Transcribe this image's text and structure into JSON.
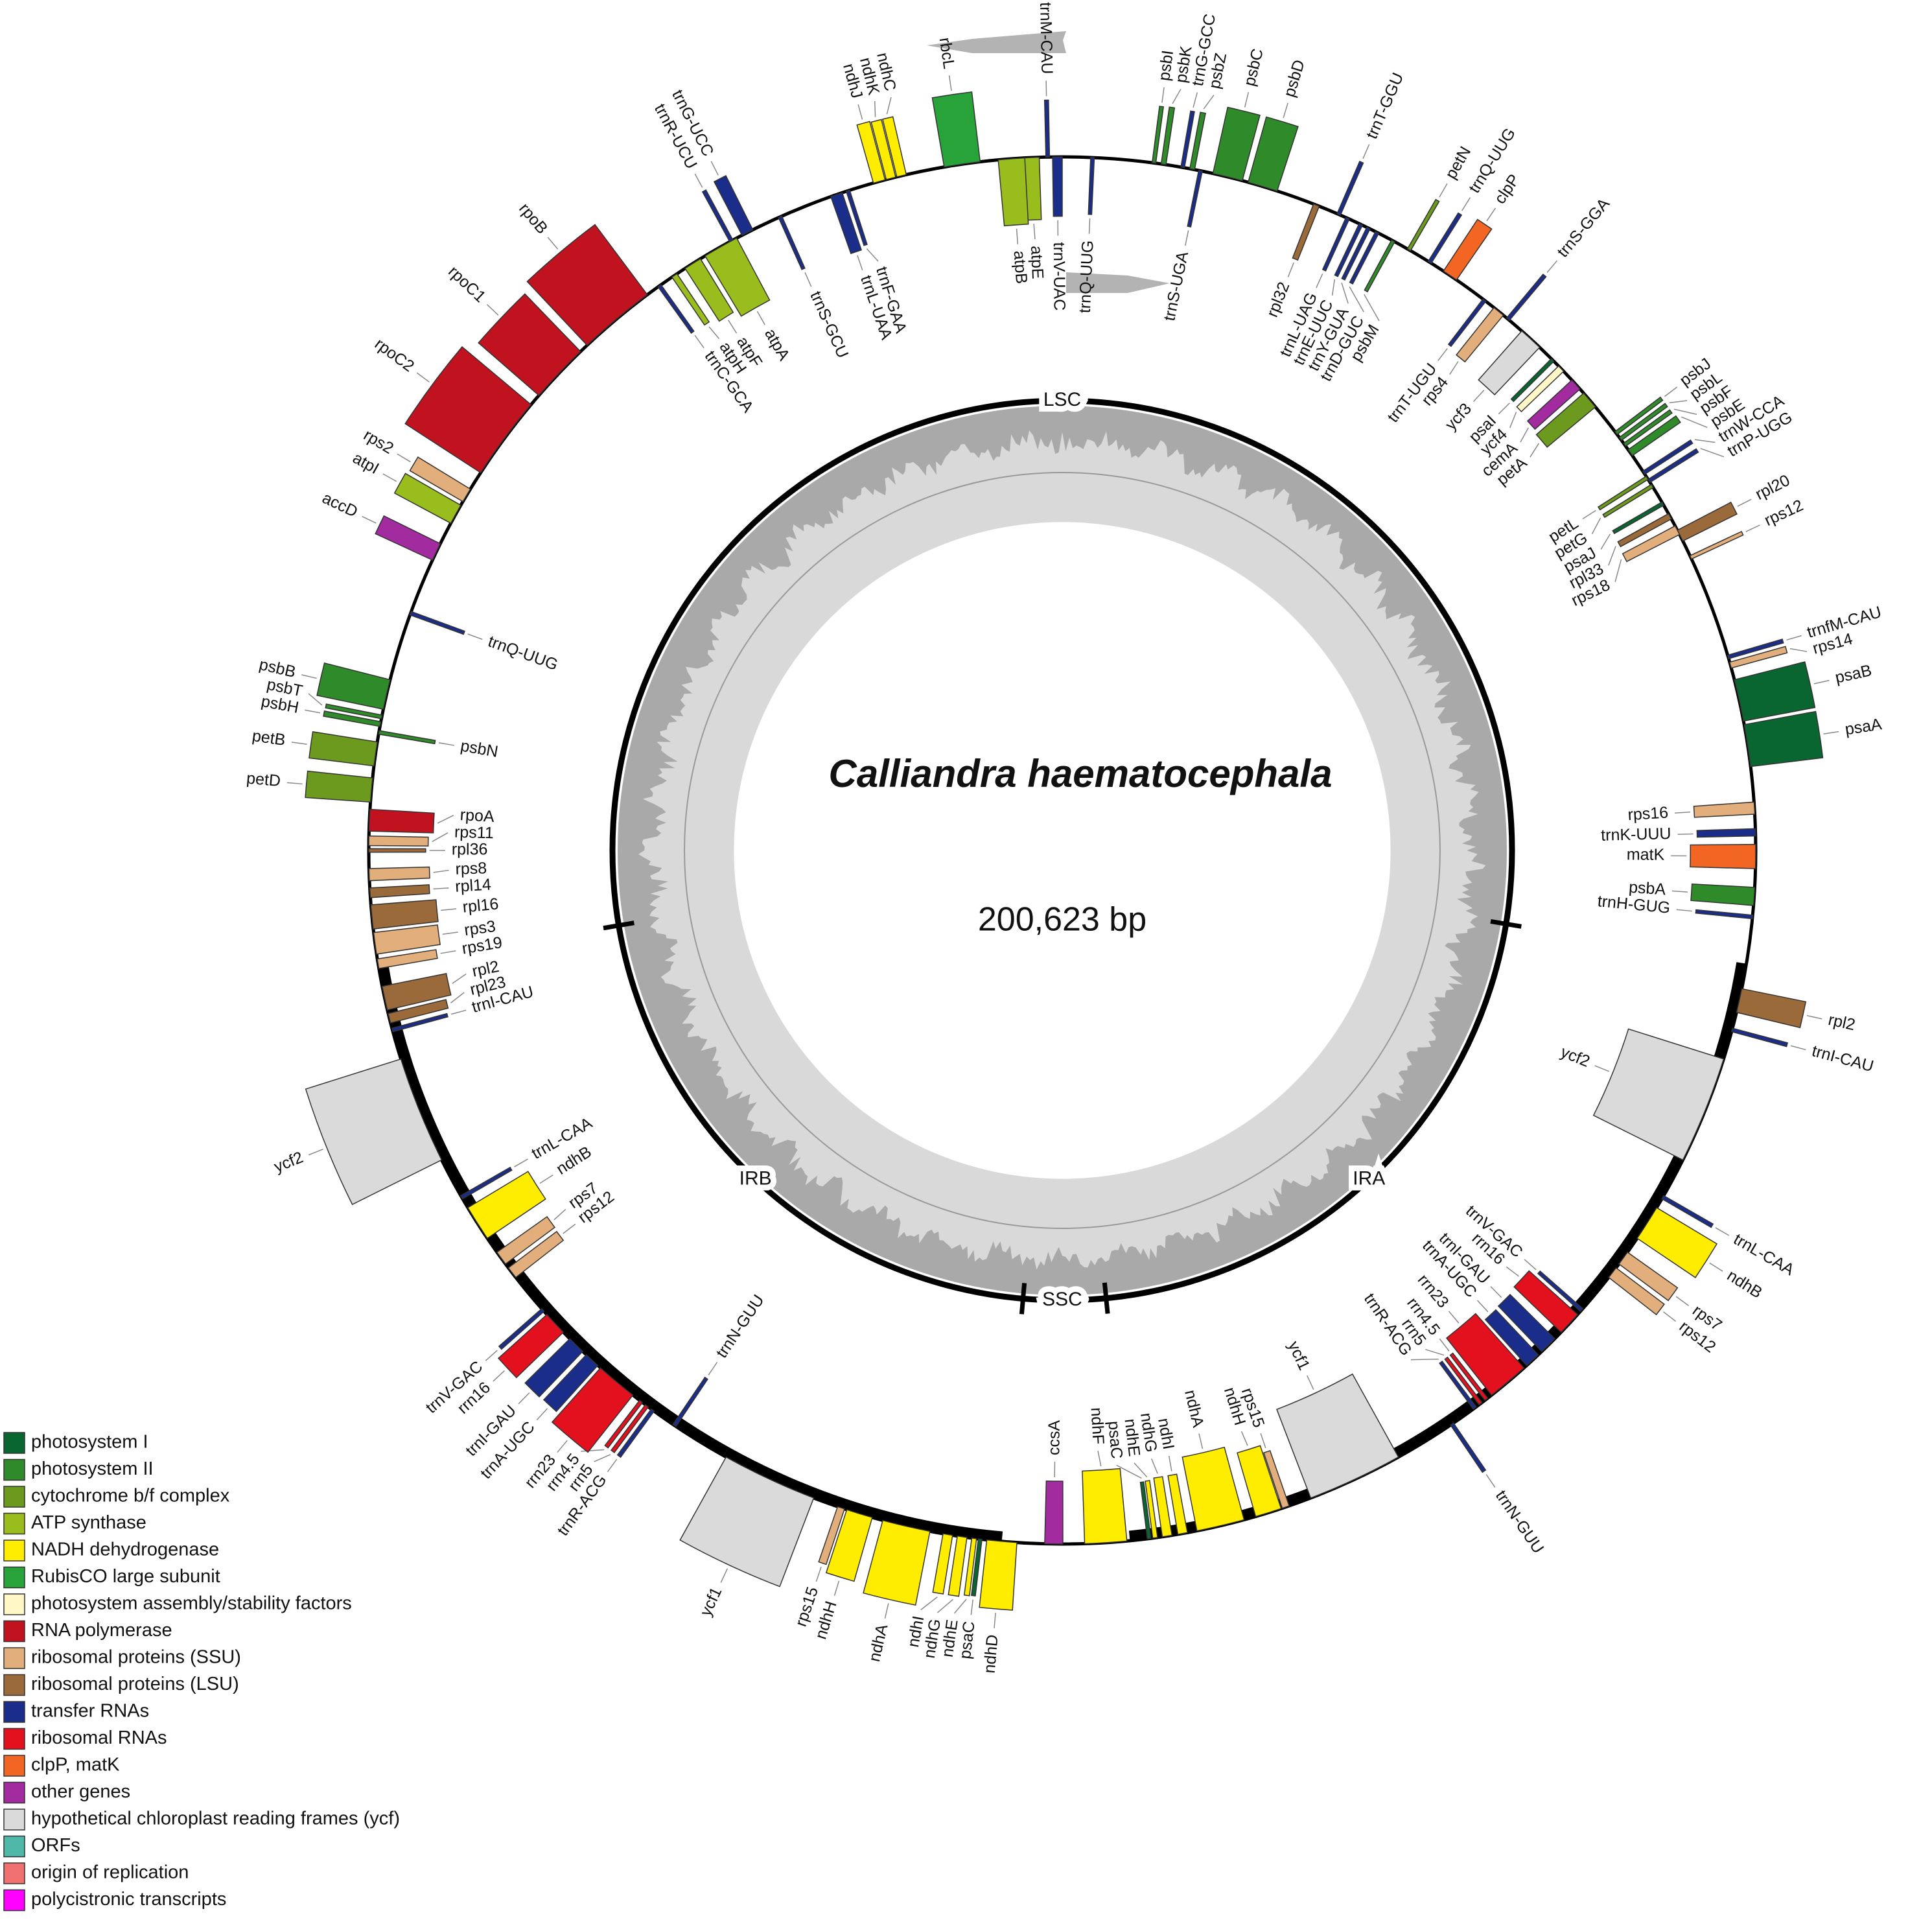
{
  "title": "Calliandra haematocephala",
  "size_label": "200,623 bp",
  "regions": [
    "LSC",
    "IRA",
    "SSC",
    "IRB"
  ],
  "genes": [
    {
      "label": "rbcL",
      "color": "#27a33a"
    },
    {
      "label": "ndhC",
      "color": "#ffed00"
    },
    {
      "label": "ndhK",
      "color": "#ffed00"
    },
    {
      "label": "ndhJ",
      "color": "#ffed00"
    },
    {
      "label": "trnM-CAU",
      "color": "#1b2d8a"
    },
    {
      "label": "atpE",
      "color": "#98bd1c"
    },
    {
      "label": "atpB",
      "color": "#98bd1c"
    },
    {
      "label": "trnV-UAC",
      "color": "#1b2d8a"
    },
    {
      "label": "trnQ-UUG",
      "color": "#1b2d8a"
    },
    {
      "label": "psbI",
      "color": "#2f8a2a"
    },
    {
      "label": "psbK",
      "color": "#2f8a2a"
    },
    {
      "label": "trnG-GCC",
      "color": "#1b2d8a"
    },
    {
      "label": "psbZ",
      "color": "#2f8a2a"
    },
    {
      "label": "trnS-UGA",
      "color": "#1b2d8a"
    },
    {
      "label": "psbC",
      "color": "#2f8a2a"
    },
    {
      "label": "psbD",
      "color": "#2f8a2a"
    },
    {
      "label": "trnT-GGU",
      "color": "#1b2d8a"
    },
    {
      "label": "rpl32",
      "color": "#9b6a3a"
    },
    {
      "label": "trnL-UAG",
      "color": "#1b2d8a"
    },
    {
      "label": "trnE-UUC",
      "color": "#1b2d8a"
    },
    {
      "label": "trnY-GUA",
      "color": "#1b2d8a"
    },
    {
      "label": "trnD-GUC",
      "color": "#1b2d8a"
    },
    {
      "label": "psbM",
      "color": "#2f8a2a"
    },
    {
      "label": "petN",
      "color": "#6b9a1f"
    },
    {
      "label": "trnQ-UUG",
      "color": "#1b2d8a"
    },
    {
      "label": "clpP",
      "color": "#f26522"
    },
    {
      "label": "trnS-GGA",
      "color": "#1b2d8a"
    },
    {
      "label": "trnT-UGU",
      "color": "#1b2d8a"
    },
    {
      "label": "rps4",
      "color": "#e2ae7c"
    },
    {
      "label": "ycf3",
      "color": "#dadada"
    },
    {
      "label": "psaI",
      "color": "#0a6630"
    },
    {
      "label": "ycf4",
      "color": "#fff8c6"
    },
    {
      "label": "cemA",
      "color": "#a32ba0"
    },
    {
      "label": "petA",
      "color": "#6b9a1f"
    },
    {
      "label": "psbJ",
      "color": "#2f8a2a"
    },
    {
      "label": "psbL",
      "color": "#2f8a2a"
    },
    {
      "label": "psbF",
      "color": "#2f8a2a"
    },
    {
      "label": "psbE",
      "color": "#2f8a2a"
    },
    {
      "label": "trnW-CCA",
      "color": "#1b2d8a"
    },
    {
      "label": "trnP-UGG",
      "color": "#1b2d8a"
    },
    {
      "label": "petL",
      "color": "#6b9a1f"
    },
    {
      "label": "petG",
      "color": "#6b9a1f"
    },
    {
      "label": "psaJ",
      "color": "#0a6630"
    },
    {
      "label": "rpl33",
      "color": "#9b6a3a"
    },
    {
      "label": "rps18",
      "color": "#e2ae7c"
    },
    {
      "label": "rpl20",
      "color": "#9b6a3a"
    },
    {
      "label": "rps12",
      "color": "#e2ae7c"
    },
    {
      "label": "trnfM-CAU",
      "color": "#1b2d8a"
    },
    {
      "label": "rps14",
      "color": "#e2ae7c"
    },
    {
      "label": "psaB",
      "color": "#0a6630"
    },
    {
      "label": "psaA",
      "color": "#0a6630"
    },
    {
      "label": "rps16",
      "color": "#e2ae7c"
    },
    {
      "label": "trnK-UUU",
      "color": "#1b2d8a"
    },
    {
      "label": "matK",
      "color": "#f26522"
    },
    {
      "label": "psbA",
      "color": "#2f8a2a"
    },
    {
      "label": "trnH-GUG",
      "color": "#1b2d8a"
    },
    {
      "label": "rpl2",
      "color": "#9b6a3a"
    },
    {
      "label": "trnI-CAU",
      "color": "#1b2d8a"
    },
    {
      "label": "ycf2",
      "color": "#dadada"
    },
    {
      "label": "trnL-CAA",
      "color": "#1b2d8a"
    },
    {
      "label": "ndhB",
      "color": "#ffed00"
    },
    {
      "label": "rps7",
      "color": "#e2ae7c"
    },
    {
      "label": "rps12",
      "color": "#e2ae7c"
    },
    {
      "label": "trnV-GAC",
      "color": "#1b2d8a"
    },
    {
      "label": "rrn16",
      "color": "#e3101e"
    },
    {
      "label": "trnI-GAU",
      "color": "#1b2d8a"
    },
    {
      "label": "trnA-UGC",
      "color": "#1b2d8a"
    },
    {
      "label": "rrn23",
      "color": "#e3101e"
    },
    {
      "label": "rrn4.5",
      "color": "#e3101e"
    },
    {
      "label": "rrn5",
      "color": "#e3101e"
    },
    {
      "label": "trnR-ACG",
      "color": "#1b2d8a"
    },
    {
      "label": "trnN-GUU",
      "color": "#1b2d8a"
    },
    {
      "label": "ycf1",
      "color": "#dadada"
    },
    {
      "label": "rps15",
      "color": "#e2ae7c"
    },
    {
      "label": "ndhH",
      "color": "#ffed00"
    },
    {
      "label": "ndhA",
      "color": "#ffed00"
    },
    {
      "label": "ndhI",
      "color": "#ffed00"
    },
    {
      "label": "ndhG",
      "color": "#ffed00"
    },
    {
      "label": "ndhE",
      "color": "#ffed00"
    },
    {
      "label": "psaC",
      "color": "#0a6630"
    },
    {
      "label": "ndhF",
      "color": "#ffed00"
    },
    {
      "label": "ccsA",
      "color": "#a32ba0"
    },
    {
      "label": "ndhD",
      "color": "#ffed00"
    },
    {
      "label": "psaC",
      "color": "#0a6630"
    },
    {
      "label": "ndhE",
      "color": "#ffed00"
    },
    {
      "label": "ndhG",
      "color": "#ffed00"
    },
    {
      "label": "ndhI",
      "color": "#ffed00"
    },
    {
      "label": "ndhA",
      "color": "#ffed00"
    },
    {
      "label": "ndhH",
      "color": "#ffed00"
    },
    {
      "label": "rps15",
      "color": "#e2ae7c"
    },
    {
      "label": "ycf1",
      "color": "#dadada"
    },
    {
      "label": "trnN-GUU",
      "color": "#1b2d8a"
    },
    {
      "label": "trnR-ACG",
      "color": "#1b2d8a"
    },
    {
      "label": "rrn5",
      "color": "#e3101e"
    },
    {
      "label": "rrn4.5",
      "color": "#e3101e"
    },
    {
      "label": "rrn23",
      "color": "#e3101e"
    },
    {
      "label": "trnA-UGC",
      "color": "#1b2d8a"
    },
    {
      "label": "trnI-GAU",
      "color": "#1b2d8a"
    },
    {
      "label": "rrn16",
      "color": "#e3101e"
    },
    {
      "label": "trnV-GAC",
      "color": "#1b2d8a"
    },
    {
      "label": "rps12",
      "color": "#e2ae7c"
    },
    {
      "label": "rps7",
      "color": "#e2ae7c"
    },
    {
      "label": "ndhB",
      "color": "#ffed00"
    },
    {
      "label": "trnL-CAA",
      "color": "#1b2d8a"
    },
    {
      "label": "ycf2",
      "color": "#dadada"
    },
    {
      "label": "trnI-CAU",
      "color": "#1b2d8a"
    },
    {
      "label": "rpl23",
      "color": "#9b6a3a"
    },
    {
      "label": "rpl2",
      "color": "#9b6a3a"
    },
    {
      "label": "rps19",
      "color": "#e2ae7c"
    },
    {
      "label": "rps3",
      "color": "#e2ae7c"
    },
    {
      "label": "rpl16",
      "color": "#9b6a3a"
    },
    {
      "label": "rpl14",
      "color": "#9b6a3a"
    },
    {
      "label": "rps8",
      "color": "#e2ae7c"
    },
    {
      "label": "rpl36",
      "color": "#9b6a3a"
    },
    {
      "label": "rps11",
      "color": "#e2ae7c"
    },
    {
      "label": "rpoA",
      "color": "#c1121f"
    },
    {
      "label": "petD",
      "color": "#6b9a1f"
    },
    {
      "label": "petB",
      "color": "#6b9a1f"
    },
    {
      "label": "psbN",
      "color": "#2f8a2a"
    },
    {
      "label": "psbH",
      "color": "#2f8a2a"
    },
    {
      "label": "psbT",
      "color": "#2f8a2a"
    },
    {
      "label": "psbB",
      "color": "#2f8a2a"
    },
    {
      "label": "trnQ-UUG",
      "color": "#1b2d8a"
    },
    {
      "label": "accD",
      "color": "#a32ba0"
    },
    {
      "label": "atpI",
      "color": "#98bd1c"
    },
    {
      "label": "rps2",
      "color": "#e2ae7c"
    },
    {
      "label": "rpoC2",
      "color": "#c1121f"
    },
    {
      "label": "rpoC1",
      "color": "#c1121f"
    },
    {
      "label": "rpoB",
      "color": "#c1121f"
    },
    {
      "label": "trnC-GCA",
      "color": "#1b2d8a"
    },
    {
      "label": "atpH",
      "color": "#98bd1c"
    },
    {
      "label": "atpF",
      "color": "#98bd1c"
    },
    {
      "label": "atpA",
      "color": "#98bd1c"
    },
    {
      "label": "trnR-UCU",
      "color": "#1b2d8a"
    },
    {
      "label": "trnG-UCC",
      "color": "#1b2d8a"
    },
    {
      "label": "trnS-GCU",
      "color": "#1b2d8a"
    },
    {
      "label": "trnL-UAA",
      "color": "#1b2d8a"
    },
    {
      "label": "trnF-GAA",
      "color": "#1b2d8a"
    }
  ],
  "legend": [
    {
      "label": "photosystem I",
      "color": "#0a6630"
    },
    {
      "label": "photosystem II",
      "color": "#2f8a2a"
    },
    {
      "label": "cytochrome b/f complex",
      "color": "#6b9a1f"
    },
    {
      "label": "ATP synthase",
      "color": "#98bd1c"
    },
    {
      "label": "NADH dehydrogenase",
      "color": "#ffed00"
    },
    {
      "label": "RubisCO large subunit",
      "color": "#27a33a"
    },
    {
      "label": "photosystem assembly/stability factors",
      "color": "#fff8c6"
    },
    {
      "label": "RNA polymerase",
      "color": "#c1121f"
    },
    {
      "label": "ribosomal proteins (SSU)",
      "color": "#e2ae7c"
    },
    {
      "label": "ribosomal proteins (LSU)",
      "color": "#9b6a3a"
    },
    {
      "label": "transfer RNAs",
      "color": "#1b2d8a"
    },
    {
      "label": "ribosomal RNAs",
      "color": "#e3101e"
    },
    {
      "label": "clpP, matK",
      "color": "#f26522"
    },
    {
      "label": "other genes",
      "color": "#a32ba0"
    },
    {
      "label": "hypothetical chloroplast reading frames (ycf)",
      "color": "#dadada"
    },
    {
      "label": "ORFs",
      "color": "#4fb8a8"
    },
    {
      "label": "origin of replication",
      "color": "#f07070"
    },
    {
      "label": "polycistronic transcripts",
      "color": "#ff00ff"
    }
  ]
}
